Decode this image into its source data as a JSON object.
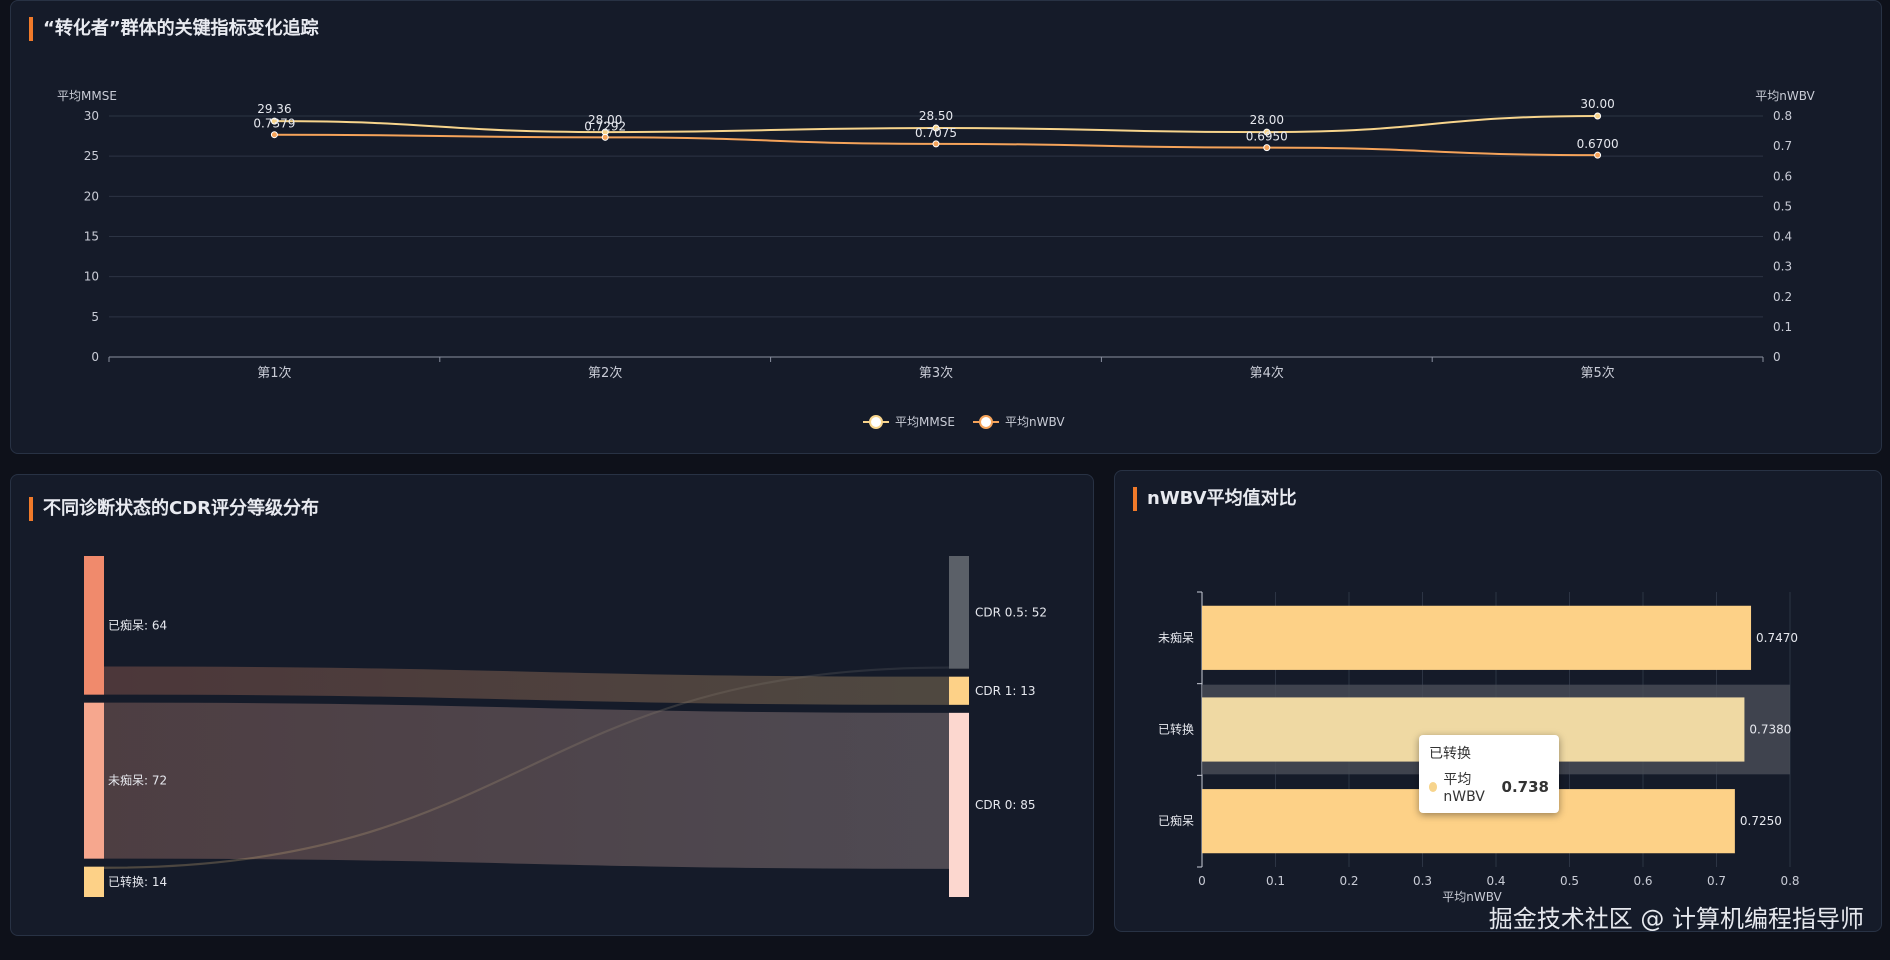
{
  "panel_top": {
    "title": "“转化者”群体的关键指标变化追踪"
  },
  "panel_sankey": {
    "title": "不同诊断状态的CDR评分等级分布"
  },
  "panel_bar": {
    "title": "nWBV平均值对比"
  },
  "tooltip": {
    "title": "已转换",
    "series": "平均nWBV",
    "value": "0.738"
  },
  "watermark": "掘金技术社区 @ 计算机编程指导师",
  "colors": {
    "mmse": "#f7d48c",
    "nwbv": "#f5a35a",
    "bar": "#fdd187",
    "bar_hover": "#efd9a3"
  },
  "chart_data": [
    {
      "type": "line",
      "categories": [
        "第1次",
        "第2次",
        "第3次",
        "第4次",
        "第5次"
      ],
      "series": [
        {
          "name": "平均MMSE",
          "axis": "left",
          "values": [
            29.36,
            28.0,
            28.5,
            28.0,
            30.0
          ],
          "labels": [
            "29.36",
            "28.00",
            "28.50",
            "28.00",
            "30.00"
          ]
        },
        {
          "name": "平均nWBV",
          "axis": "right",
          "values": [
            0.7379,
            0.7292,
            0.7075,
            0.695,
            0.67
          ],
          "labels": [
            "0.7379",
            "0.7292",
            "0.7075",
            "0.6950",
            "0.6700"
          ]
        }
      ],
      "ylabel_left": "平均MMSE",
      "ylabel_right": "平均nWBV",
      "ylim_left": [
        0,
        30
      ],
      "ylim_right": [
        0,
        0.8
      ],
      "yticks_left": [
        0,
        5,
        10,
        15,
        20,
        25,
        30
      ],
      "yticks_right": [
        "0",
        "0.1",
        "0.2",
        "0.3",
        "0.4",
        "0.5",
        "0.6",
        "0.7",
        "0.8"
      ],
      "legend": "bottom-center"
    },
    {
      "type": "sankey",
      "sources": [
        {
          "name": "已痴呆",
          "value": 64,
          "label": "已痴呆: 64",
          "color": "#f08a6c"
        },
        {
          "name": "未痴呆",
          "value": 72,
          "label": "未痴呆: 72",
          "color": "#f6a78e"
        },
        {
          "name": "已转换",
          "value": 14,
          "label": "已转换: 14",
          "color": "#fdd187"
        }
      ],
      "targets": [
        {
          "name": "CDR 0.5",
          "value": 52,
          "label": "CDR 0.5: 52",
          "color": "#5b6068"
        },
        {
          "name": "CDR 1",
          "value": 13,
          "label": "CDR 1: 13",
          "color": "#fdd187"
        },
        {
          "name": "CDR 0",
          "value": 85,
          "label": "CDR 0: 85",
          "color": "#fcd7cf"
        }
      ],
      "links": [
        {
          "source": "已痴呆",
          "target": "CDR 0.5",
          "value": 51
        },
        {
          "source": "已痴呆",
          "target": "CDR 1",
          "value": 13
        },
        {
          "source": "未痴呆",
          "target": "CDR 0",
          "value": 72
        },
        {
          "source": "已转换",
          "target": "CDR 0.5",
          "value": 1
        },
        {
          "source": "已转换",
          "target": "CDR 0",
          "value": 13
        }
      ]
    },
    {
      "type": "bar",
      "orientation": "horizontal",
      "categories": [
        "未痴呆",
        "已转换",
        "已痴呆"
      ],
      "values": [
        0.747,
        0.738,
        0.725
      ],
      "labels": [
        "0.7470",
        "0.7380",
        "0.7250"
      ],
      "xlabel": "平均nWBV",
      "xlim": [
        0,
        0.8
      ],
      "xticks": [
        "0",
        "0.1",
        "0.2",
        "0.3",
        "0.4",
        "0.5",
        "0.6",
        "0.7",
        "0.8"
      ],
      "highlighted": "已转换"
    }
  ]
}
